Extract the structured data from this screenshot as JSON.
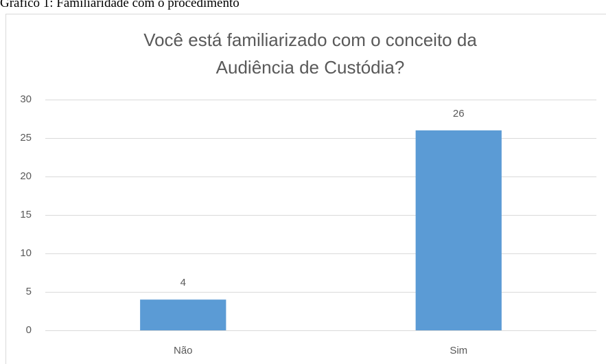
{
  "caption": "Gráfico 1: Familiaridade com o procedimento",
  "chart_data": {
    "type": "bar",
    "title": "Você está familiarizado com o conceito da Audiência de Custódia?",
    "categories": [
      "Não",
      "Sim"
    ],
    "values": [
      4,
      26
    ],
    "color": "#5b9bd5",
    "ylim": [
      0,
      30
    ],
    "yticks": [
      0,
      5,
      10,
      15,
      20,
      25,
      30
    ],
    "grid": true,
    "data_labels": true
  }
}
